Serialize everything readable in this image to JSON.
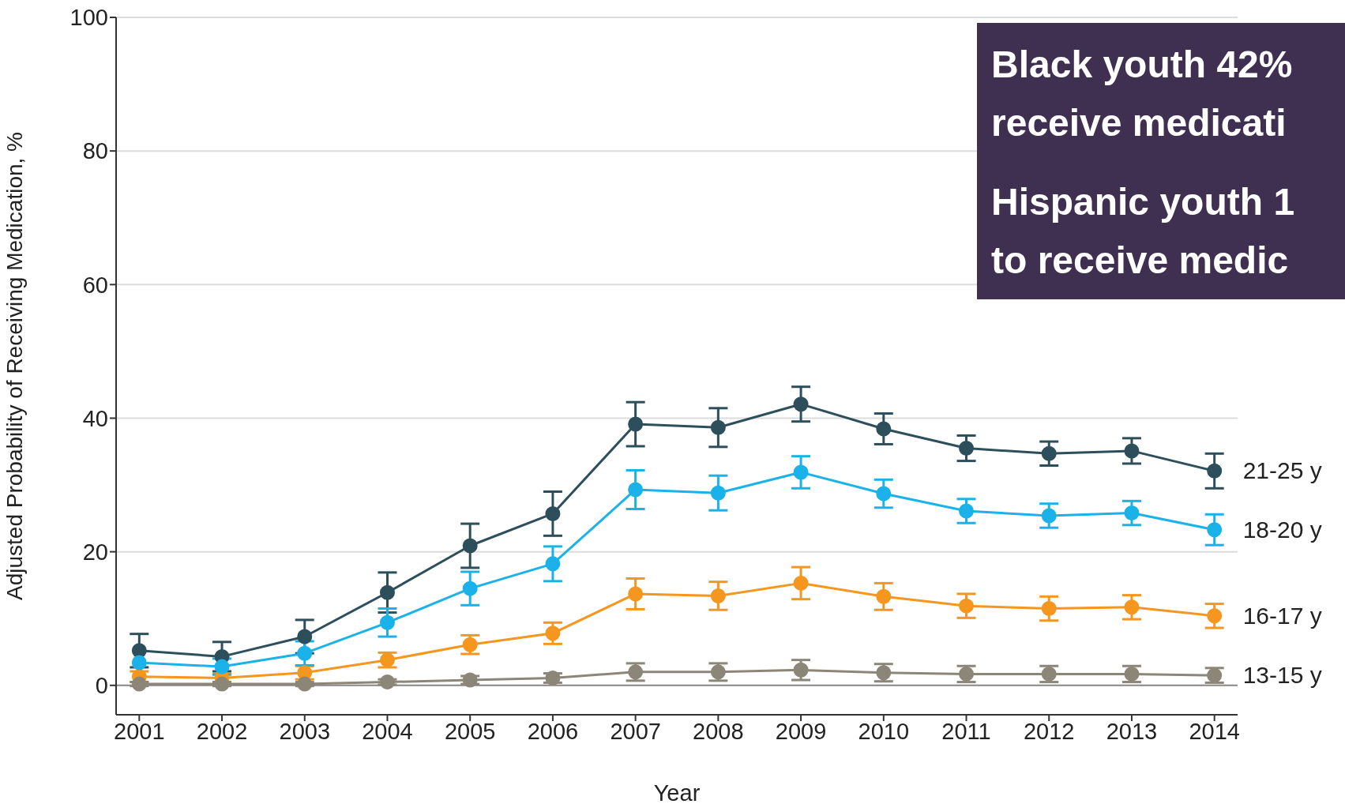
{
  "chart_data": {
    "type": "line",
    "xlabel": "Year",
    "ylabel": "Adjusted Probability of Receiving Medication, %",
    "categories": [
      "2001",
      "2002",
      "2003",
      "2004",
      "2005",
      "2006",
      "2007",
      "2008",
      "2009",
      "2010",
      "2011",
      "2012",
      "2013",
      "2014"
    ],
    "series": [
      {
        "name": "21-25 y",
        "color": "#2d4f5c",
        "values": [
          5.2,
          4.3,
          7.3,
          13.9,
          20.9,
          25.7,
          39.1,
          38.6,
          42.1,
          38.4,
          35.5,
          34.7,
          35.1,
          32.1
        ],
        "errors": [
          2.5,
          2.2,
          2.5,
          3,
          3.3,
          3.3,
          3.3,
          2.9,
          2.6,
          2.3,
          1.9,
          1.8,
          1.9,
          2.6
        ]
      },
      {
        "name": "18-20 y",
        "color": "#1ab2e8",
        "values": [
          3.4,
          2.8,
          4.8,
          9.4,
          14.5,
          18.2,
          29.3,
          28.8,
          31.9,
          28.7,
          26.1,
          25.4,
          25.8,
          23.3
        ],
        "errors": [
          null,
          1.2,
          1.8,
          2.1,
          2.5,
          2.6,
          2.9,
          2.6,
          2.4,
          2.1,
          1.8,
          1.8,
          1.8,
          2.3
        ]
      },
      {
        "name": "16-17 y",
        "color": "#f5961f",
        "values": [
          1.3,
          1.1,
          1.9,
          3.8,
          6.1,
          7.8,
          13.7,
          13.4,
          15.3,
          13.3,
          11.9,
          11.5,
          11.7,
          10.4
        ],
        "errors": [
          0.8,
          0.6,
          1,
          1.1,
          1.4,
          1.6,
          2.3,
          2.1,
          2.4,
          2,
          1.8,
          1.8,
          1.8,
          1.8
        ]
      },
      {
        "name": "13-15 y",
        "color": "#8c8678",
        "values": [
          0.2,
          0.2,
          0.2,
          0.5,
          0.8,
          1.1,
          2.0,
          2.0,
          2.3,
          1.9,
          1.7,
          1.7,
          1.7,
          1.5
        ],
        "errors": [
          0.3,
          0.3,
          0.3,
          0.4,
          0.6,
          0.7,
          1.3,
          1.3,
          1.5,
          1.3,
          1.2,
          1.2,
          1.2,
          1.1
        ]
      }
    ],
    "ylim": [
      -4.4,
      100
    ],
    "yticks": [
      0,
      20,
      40,
      60,
      80,
      100
    ],
    "grid": "y",
    "marker": "circle",
    "ref_lines": [
      {
        "axis": "y",
        "value": 0,
        "color": "#8a8a8a"
      }
    ],
    "annotations": [
      "Black youth 42%",
      "receive medicati",
      "Hispanic youth 1",
      "to receive medic"
    ]
  }
}
